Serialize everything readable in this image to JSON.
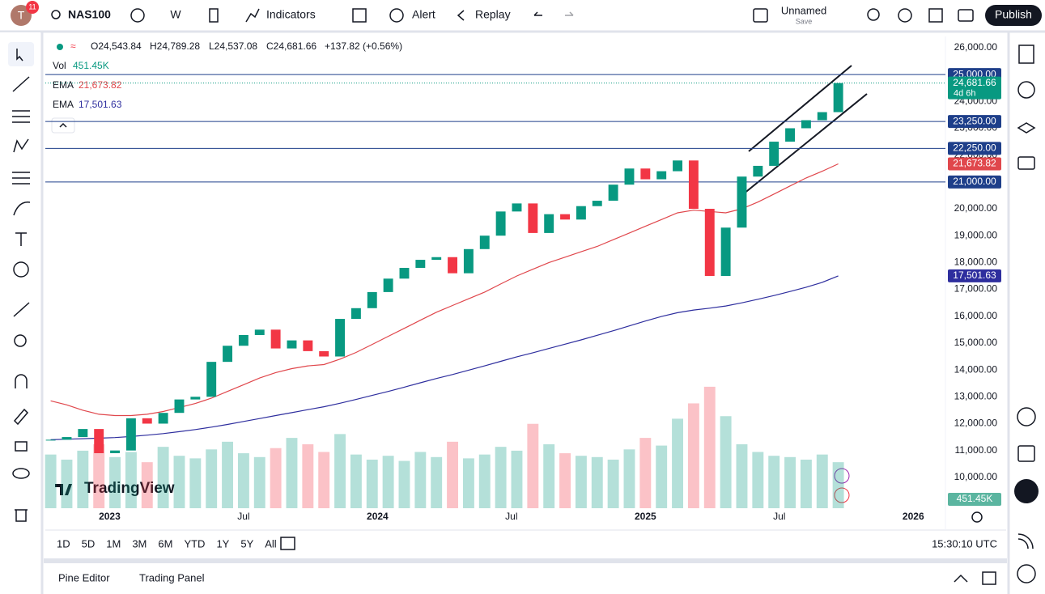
{
  "toolbar": {
    "avatar": "T",
    "badge": "11",
    "symbol": "NAS100",
    "interval": "W",
    "indicators": "Indicators",
    "alert": "Alert",
    "replay": "Replay",
    "layout_name": "Unnamed",
    "save": "Save",
    "publish": "Publish"
  },
  "legend": {
    "ohlc": [
      "O24,543.84",
      "H24,789.28",
      "L24,537.08",
      "C24,681.66",
      "+137.82 (+0.56%)"
    ],
    "indicators": [
      {
        "name": "Vol",
        "value": "451.45K"
      },
      {
        "name": "EMA",
        "value": "21,673.82"
      },
      {
        "name": "EMA",
        "value": "17,501.63"
      }
    ]
  },
  "logo": "TradingView",
  "timeframes": [
    "1D",
    "5D",
    "1M",
    "3M",
    "6M",
    "YTD",
    "1Y",
    "5Y",
    "All"
  ],
  "clock": "15:30:10 UTC",
  "panel_tabs": [
    "Pine Editor",
    "Trading Panel"
  ],
  "chart_data": {
    "type": "candlestick",
    "x": [
      2022.78,
      2022.84,
      2022.9,
      2022.96,
      2023.02,
      2023.08,
      2023.14,
      2023.2,
      2023.26,
      2023.32,
      2023.38,
      2023.44,
      2023.5,
      2023.56,
      2023.62,
      2023.68,
      2023.74,
      2023.8,
      2023.86,
      2023.92,
      2023.98,
      2024.04,
      2024.1,
      2024.16,
      2024.22,
      2024.28,
      2024.34,
      2024.4,
      2024.46,
      2024.52,
      2024.58,
      2024.64,
      2024.7,
      2024.76,
      2024.82,
      2024.88,
      2024.94,
      2025.0,
      2025.06,
      2025.12,
      2025.18,
      2025.24,
      2025.3,
      2025.36,
      2025.42,
      2025.48,
      2025.54,
      2025.6,
      2025.66,
      2025.72
    ],
    "close": [
      11400,
      11500,
      11800,
      10900,
      11000,
      12200,
      12000,
      12400,
      12900,
      13000,
      14300,
      14900,
      15300,
      15500,
      14800,
      15100,
      14700,
      14500,
      15900,
      16300,
      16900,
      17400,
      17800,
      18100,
      18200,
      17600,
      18500,
      19000,
      19900,
      20200,
      19100,
      19800,
      19600,
      20100,
      20300,
      20900,
      21500,
      21100,
      21400,
      21800,
      20000,
      17500,
      19300,
      21200,
      21600,
      22500,
      23000,
      23300,
      23600,
      24681.66
    ],
    "volume": [
      42,
      38,
      45,
      50,
      40,
      44,
      36,
      48,
      41,
      39,
      46,
      52,
      43,
      40,
      47,
      55,
      50,
      44,
      58,
      42,
      38,
      41,
      37,
      44,
      40,
      52,
      39,
      42,
      48,
      45,
      66,
      50,
      43,
      41,
      40,
      38,
      46,
      55,
      49,
      70,
      82,
      95,
      72,
      50,
      44,
      41,
      40,
      38,
      42,
      36
    ],
    "volume_ylim": [
      0,
      100
    ],
    "ema": [
      {
        "color": "#e0474c",
        "values": [
          12850,
          12700,
          12500,
          12350,
          12300,
          12300,
          12350,
          12450,
          12600,
          12750,
          12950,
          13200,
          13450,
          13700,
          13900,
          14050,
          14150,
          14200,
          14400,
          14650,
          14950,
          15250,
          15550,
          15850,
          16150,
          16400,
          16650,
          16900,
          17200,
          17500,
          17750,
          18000,
          18200,
          18400,
          18600,
          18850,
          19100,
          19350,
          19600,
          19850,
          19950,
          19900,
          19850,
          20000,
          20250,
          20550,
          20850,
          21150,
          21400,
          21673.82
        ]
      },
      {
        "color": "#2e2e9e",
        "values": [
          11400,
          11420,
          11440,
          11460,
          11480,
          11520,
          11570,
          11630,
          11700,
          11780,
          11870,
          11970,
          12080,
          12190,
          12300,
          12410,
          12520,
          12630,
          12760,
          12900,
          13050,
          13200,
          13360,
          13520,
          13680,
          13830,
          13990,
          14150,
          14320,
          14490,
          14640,
          14800,
          14960,
          15120,
          15290,
          15460,
          15640,
          15820,
          15990,
          16130,
          16230,
          16300,
          16380,
          16500,
          16630,
          16770,
          16920,
          17080,
          17260,
          17501.63
        ]
      }
    ],
    "up_color": "#089981",
    "down_color": "#f23645",
    "hlines": [
      {
        "value": 25000,
        "label": "25,000.00"
      },
      {
        "value": 23250,
        "label": "23,250.00"
      },
      {
        "value": 22250,
        "label": "22,250.00"
      },
      {
        "value": 21000,
        "label": "21,000.00"
      }
    ],
    "hline_color": "#1e3f8a",
    "price_tags": [
      {
        "value": 24681.66,
        "label": "24,681.66",
        "color": "#089981"
      },
      {
        "value": 21673.82,
        "label": "21,673.82",
        "color": "#e0474c"
      },
      {
        "value": 17501.63,
        "label": "17,501.63",
        "color": "#2e2e9e"
      }
    ],
    "countdown": "4d 6h",
    "volume_tag": "451.45K",
    "xlim": [
      2022.76,
      2026.12
    ],
    "xticks": [
      2023,
      {
        "value": 2023.5,
        "label": "Jul"
      },
      2024,
      {
        "value": 2024.5,
        "label": "Jul"
      },
      2025,
      {
        "value": 2025.5,
        "label": "Jul"
      },
      2026
    ],
    "ylim": [
      8850,
      26420
    ],
    "yticks": [
      {
        "value": 26000,
        "label": "26,000.00"
      },
      {
        "value": 25000,
        "label": "25,000.00"
      },
      {
        "value": 24000,
        "label": "24,000.00"
      },
      {
        "value": 23000,
        "label": "23,000.00"
      },
      {
        "value": 22000,
        "label": "22,000.00"
      },
      {
        "value": 21000,
        "label": "21,000.00"
      },
      {
        "value": 20000,
        "label": "20,000.00"
      },
      {
        "value": 19000,
        "label": "19,000.00"
      },
      {
        "value": 18000,
        "label": "18,000.00"
      },
      {
        "value": 17000,
        "label": "17,000.00"
      },
      {
        "value": 16000,
        "label": "16,000.00"
      },
      {
        "value": 15000,
        "label": "15,000.00"
      },
      {
        "value": 14000,
        "label": "14,000.00"
      },
      {
        "value": 13000,
        "label": "13,000.00"
      },
      {
        "value": 12000,
        "label": "12,000.00"
      },
      {
        "value": 11000,
        "label": "11,000.00"
      },
      {
        "value": 10000,
        "label": "10,000.00"
      }
    ],
    "grid": false
  }
}
